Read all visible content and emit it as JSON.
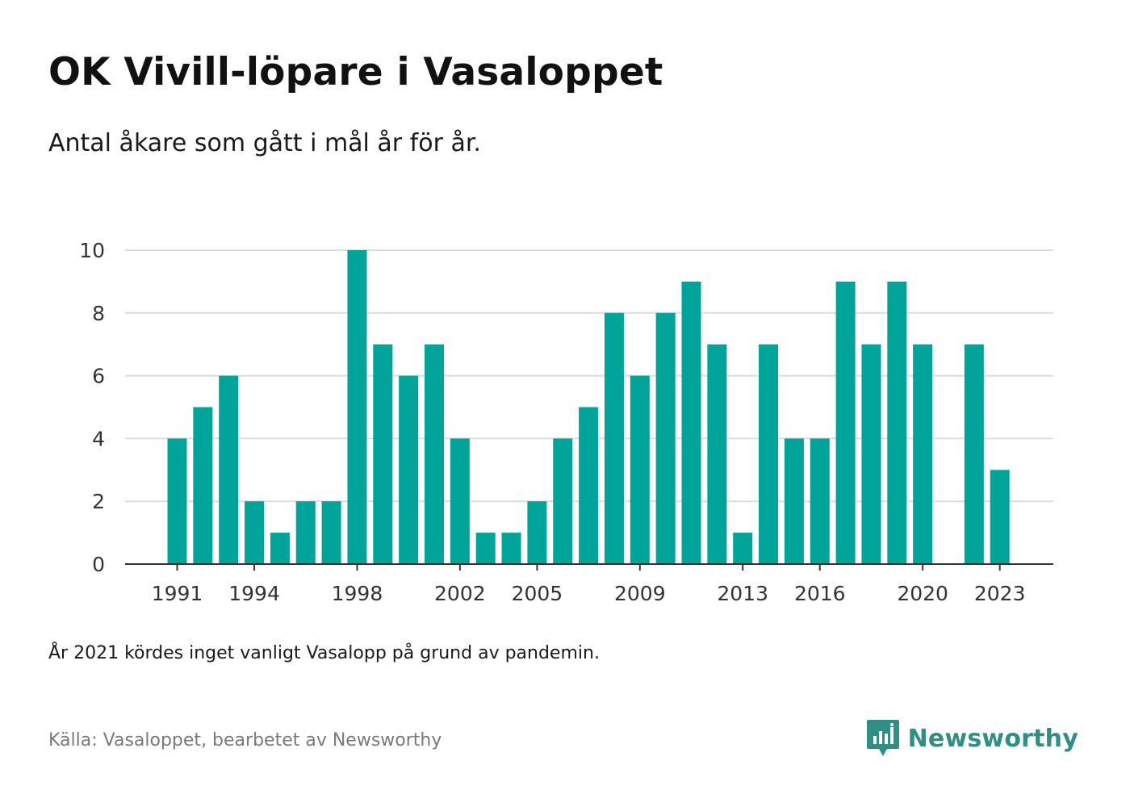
{
  "title": "OK Vivill-löpare i Vasaloppet",
  "subtitle": "Antal åkare som gått i mål år för år.",
  "note": "År 2021 kördes inget vanligt Vasalopp på grund av pandemin.",
  "source": "Källa: Vasaloppet, bearbetet av Newsworthy",
  "brand": {
    "name": "Newsworthy",
    "icon": "newsworthy-logo-icon",
    "color": "#2f8f86"
  },
  "colors": {
    "bar": "#00a499",
    "grid": "#dcdcdc",
    "axis": "#333333",
    "tick_text": "#333333"
  },
  "chart_data": {
    "type": "bar",
    "x": [
      1991,
      1992,
      1993,
      1994,
      1995,
      1996,
      1997,
      1998,
      1999,
      2000,
      2001,
      2002,
      2003,
      2004,
      2005,
      2006,
      2007,
      2008,
      2009,
      2010,
      2011,
      2012,
      2013,
      2014,
      2015,
      2016,
      2017,
      2018,
      2019,
      2020,
      2021,
      2022,
      2023
    ],
    "values": [
      4,
      5,
      6,
      2,
      1,
      2,
      2,
      10,
      7,
      6,
      7,
      4,
      1,
      1,
      2,
      4,
      5,
      8,
      6,
      8,
      9,
      7,
      1,
      7,
      4,
      4,
      9,
      7,
      9,
      7,
      null,
      7,
      3
    ],
    "x_tick_labels": [
      1991,
      1994,
      1998,
      2002,
      2005,
      2009,
      2013,
      2016,
      2020,
      2023
    ],
    "y_ticks": [
      0,
      2,
      4,
      6,
      8,
      10
    ],
    "ylim": [
      0,
      10
    ],
    "grid": true,
    "xlabel": "",
    "ylabel": ""
  }
}
